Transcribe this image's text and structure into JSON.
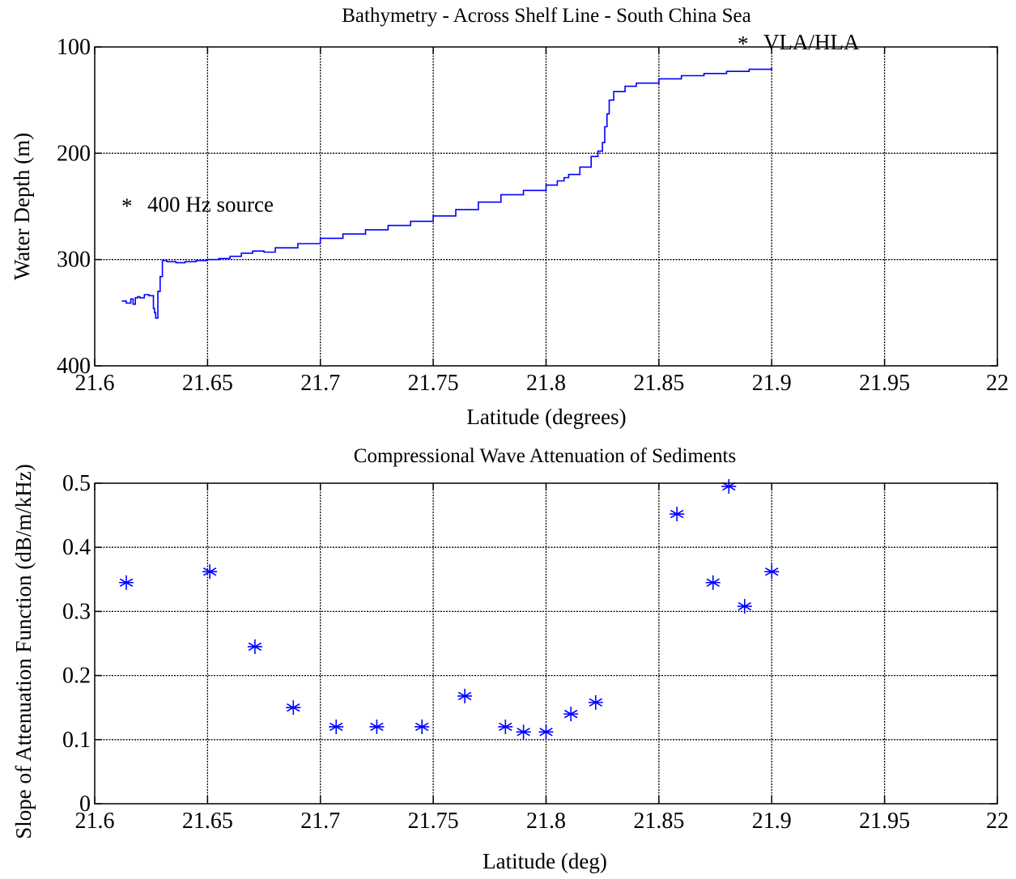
{
  "colors": {
    "series": "#0000ff",
    "axes": "#000000",
    "background": "#ffffff"
  },
  "chart_data": [
    {
      "type": "line",
      "title": "Bathymetry - Across Shelf Line - South China Sea",
      "xlabel": "Latitude (degrees)",
      "ylabel": "Water Depth (m)",
      "xlim": [
        21.6,
        22
      ],
      "ylim": [
        400,
        100
      ],
      "y_reversed": true,
      "grid": true,
      "xticks": [
        21.6,
        21.65,
        21.7,
        21.75,
        21.8,
        21.85,
        21.9,
        21.95,
        22
      ],
      "xtick_labels": [
        "21.6",
        "21.65",
        "21.7",
        "21.75",
        "21.8",
        "21.85",
        "21.9",
        "21.95",
        "22"
      ],
      "yticks": [
        100,
        200,
        300,
        400
      ],
      "ytick_labels": [
        "100",
        "200",
        "300",
        "400"
      ],
      "annotations": [
        {
          "text": "400 Hz source",
          "marker": "*",
          "x": 21.614,
          "y": 246
        },
        {
          "text": "VLA/HLA",
          "marker": "*",
          "x": 21.887,
          "y": 93
        }
      ],
      "series": [
        {
          "x": [
            21.612,
            21.614,
            21.616,
            21.617,
            21.618,
            21.619,
            21.62,
            21.622,
            21.624,
            21.626,
            21.6265,
            21.627,
            21.628,
            21.629,
            21.63,
            21.632,
            21.636,
            21.64,
            21.645,
            21.65,
            21.655,
            21.66,
            21.665,
            21.67,
            21.675,
            21.678,
            21.68,
            21.69,
            21.7,
            21.71,
            21.72,
            21.73,
            21.74,
            21.75,
            21.76,
            21.77,
            21.78,
            21.79,
            21.8,
            21.805,
            21.808,
            21.81,
            21.815,
            21.82,
            21.823,
            21.825,
            21.826,
            21.827,
            21.828,
            21.83,
            21.835,
            21.84,
            21.85,
            21.86,
            21.87,
            21.88,
            21.89,
            21.9
          ],
          "y": [
            339,
            341,
            337,
            342,
            336,
            335,
            336,
            333,
            334,
            346,
            350,
            355,
            330,
            316,
            301,
            302,
            303,
            302,
            301,
            300,
            299,
            297,
            294,
            292,
            293,
            293,
            289,
            285,
            280,
            276,
            272,
            268,
            264,
            259,
            253,
            246,
            239,
            235,
            230,
            226,
            223,
            220,
            213,
            203,
            198,
            190,
            175,
            163,
            150,
            142,
            137,
            134,
            130,
            127,
            125,
            123,
            121,
            119
          ]
        }
      ]
    },
    {
      "type": "scatter",
      "title": "Compressional Wave Attenuation of Sediments",
      "xlabel": "Latitude (deg)",
      "ylabel": "Slope of Attenuation Function (dB/m/kHz)",
      "xlim": [
        21.6,
        22
      ],
      "ylim": [
        0,
        0.5
      ],
      "grid": true,
      "xticks": [
        21.6,
        21.65,
        21.7,
        21.75,
        21.8,
        21.85,
        21.9,
        21.95,
        22
      ],
      "xtick_labels": [
        "21.6",
        "21.65",
        "21.7",
        "21.75",
        "21.8",
        "21.85",
        "21.9",
        "21.95",
        "22"
      ],
      "yticks": [
        0,
        0.1,
        0.2,
        0.3,
        0.4,
        0.5
      ],
      "ytick_labels": [
        "0",
        "0.1",
        "0.2",
        "0.3",
        "0.4",
        "0.5"
      ],
      "series": [
        {
          "marker": "*",
          "x": [
            21.614,
            21.651,
            21.671,
            21.688,
            21.707,
            21.725,
            21.745,
            21.764,
            21.782,
            21.79,
            21.8,
            21.811,
            21.822,
            21.858,
            21.874,
            21.881,
            21.888,
            21.9
          ],
          "y": [
            0.345,
            0.362,
            0.245,
            0.15,
            0.12,
            0.12,
            0.12,
            0.168,
            0.12,
            0.112,
            0.112,
            0.14,
            0.158,
            0.452,
            0.345,
            0.495,
            0.308,
            0.362
          ]
        }
      ]
    }
  ]
}
